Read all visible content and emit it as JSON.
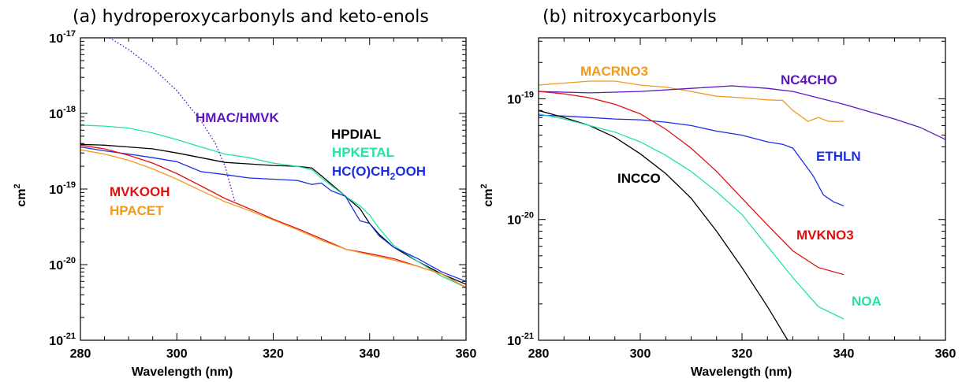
{
  "chart_data": [
    {
      "type": "line",
      "title": "(a) hydroperoxycarbonyls and keto-enols",
      "xlabel": "Wavelength (nm)",
      "ylabel": "cm2",
      "ylabel_base": "cm",
      "ylabel_sup": "2",
      "yscale": "log",
      "xlim": [
        280,
        360
      ],
      "ylim": [
        1e-21,
        1e-17
      ],
      "xticks": [
        280,
        300,
        320,
        340,
        360
      ],
      "xtick_labels": [
        "280",
        "300",
        "320",
        "340",
        "360"
      ],
      "yticks": [
        1e-21,
        1e-20,
        1e-19,
        1e-18,
        1e-17
      ],
      "ytick_bases": [
        "10",
        "10",
        "10",
        "10",
        "10"
      ],
      "ytick_exps": [
        "-21",
        "-20",
        "-19",
        "-18",
        "-17"
      ],
      "grid": false,
      "legend": "none",
      "series": [
        {
          "name": "HPDIAL",
          "color": "#000000",
          "x": [
            280,
            285,
            290,
            295,
            300,
            305,
            310,
            315,
            320,
            325,
            328,
            330,
            335,
            338,
            340,
            342,
            345,
            350,
            355,
            360
          ],
          "y": [
            3.9e-19,
            3.8e-19,
            3.6e-19,
            3.4e-19,
            3e-19,
            2.6e-19,
            2.25e-19,
            2.15e-19,
            2.05e-19,
            2e-19,
            1.9e-19,
            1.5e-19,
            8e-20,
            5.5e-20,
            3.5e-20,
            2.5e-20,
            1.7e-20,
            1.1e-20,
            7.5e-21,
            5.5e-21
          ]
        },
        {
          "name": "HPKETAL",
          "color": "#22e4a0",
          "x": [
            280,
            285,
            290,
            295,
            300,
            305,
            310,
            315,
            320,
            325,
            328,
            330,
            335,
            338,
            340,
            342,
            345,
            350,
            355,
            360
          ],
          "y": [
            7e-19,
            6.8e-19,
            6.4e-19,
            5.5e-19,
            4.5e-19,
            3.6e-19,
            2.9e-19,
            2.6e-19,
            2.2e-19,
            2e-19,
            1.8e-19,
            1.4e-19,
            8e-20,
            6e-20,
            4.5e-20,
            3e-20,
            1.8e-20,
            1.1e-20,
            7e-21,
            5e-21
          ]
        },
        {
          "name": "HC(O)CH2OOH",
          "color": "#1a2de6",
          "x": [
            280,
            285,
            290,
            295,
            300,
            305,
            310,
            315,
            320,
            325,
            328,
            330,
            332,
            335,
            338,
            340,
            342,
            345,
            350,
            355,
            360
          ],
          "y": [
            3.6e-19,
            3.2e-19,
            2.9e-19,
            2.6e-19,
            2.3e-19,
            1.7e-19,
            1.55e-19,
            1.4e-19,
            1.35e-19,
            1.3e-19,
            1.15e-19,
            1.2e-19,
            9.5e-20,
            8e-20,
            3.8e-20,
            3.5e-20,
            2.4e-20,
            1.7e-20,
            1.2e-20,
            8e-21,
            6e-21
          ]
        },
        {
          "name": "MVKOOH",
          "color": "#e01010",
          "x": [
            280,
            285,
            290,
            295,
            300,
            305,
            310,
            315,
            320,
            325,
            330,
            335,
            340,
            345,
            350,
            355,
            360
          ],
          "y": [
            3.8e-19,
            3.4e-19,
            2.8e-19,
            2.2e-19,
            1.6e-19,
            1.1e-19,
            7.5e-20,
            5.5e-20,
            4e-20,
            3e-20,
            2.2e-20,
            1.6e-20,
            1.4e-20,
            1.2e-20,
            9.5e-21,
            7.5e-21,
            5e-21
          ]
        },
        {
          "name": "HPACET",
          "color": "#f39a1c",
          "x": [
            280,
            285,
            290,
            295,
            300,
            305,
            310,
            315,
            320,
            325,
            330,
            335,
            340,
            345,
            350,
            355,
            360
          ],
          "y": [
            3.3e-19,
            2.9e-19,
            2.4e-19,
            1.85e-19,
            1.35e-19,
            9.5e-20,
            6.8e-20,
            5.2e-20,
            3.9e-20,
            2.9e-20,
            2.1e-20,
            1.6e-20,
            1.35e-20,
            1.15e-20,
            9.5e-21,
            7.5e-21,
            5e-21
          ]
        },
        {
          "name": "HMAC/HMVK",
          "color": "#5b16c4",
          "dash": "dotted",
          "x": [
            286,
            290,
            295,
            300,
            305,
            308,
            310,
            312
          ],
          "y": [
            1e-17,
            7e-18,
            4e-18,
            2e-18,
            8e-19,
            4e-19,
            2e-19,
            7e-20
          ]
        }
      ]
    },
    {
      "type": "line",
      "title": "(b) nitroxycarbonyls",
      "xlabel": "Wavelength (nm)",
      "ylabel": "cm2",
      "ylabel_base": "cm",
      "ylabel_sup": "2",
      "yscale": "log",
      "xlim": [
        280,
        360
      ],
      "ylim": [
        1e-21,
        3.2e-19
      ],
      "xticks": [
        280,
        300,
        320,
        340,
        360
      ],
      "xtick_labels": [
        "280",
        "300",
        "320",
        "340",
        "360"
      ],
      "yticks": [
        1e-21,
        1e-20,
        1e-19
      ],
      "ytick_bases": [
        "10",
        "10",
        "10"
      ],
      "ytick_exps": [
        "-21",
        "-20",
        "-19"
      ],
      "grid": false,
      "legend": "none",
      "series": [
        {
          "name": "MACRNO3",
          "color": "#f39a1c",
          "x": [
            280,
            285,
            290,
            295,
            300,
            305,
            310,
            315,
            320,
            325,
            328,
            330,
            333,
            335,
            337,
            340
          ],
          "y": [
            1.3e-19,
            1.35e-19,
            1.4e-19,
            1.4e-19,
            1.3e-19,
            1.25e-19,
            1.15e-19,
            1.05e-19,
            1.02e-19,
            9.8e-20,
            9.7e-20,
            8e-20,
            6.5e-20,
            7e-20,
            6.5e-20,
            6.5e-20
          ]
        },
        {
          "name": "NC4CHO",
          "color": "#5b16c4",
          "x": [
            280,
            290,
            300,
            310,
            318,
            325,
            330,
            340,
            350,
            355,
            360
          ],
          "y": [
            1.15e-19,
            1.12e-19,
            1.15e-19,
            1.22e-19,
            1.28e-19,
            1.22e-19,
            1.15e-19,
            9e-20,
            6.8e-20,
            5.8e-20,
            4.6e-20
          ]
        },
        {
          "name": "ETHLN",
          "color": "#1a2de6",
          "x": [
            280,
            285,
            290,
            295,
            300,
            305,
            310,
            315,
            320,
            325,
            328,
            330,
            332,
            334,
            336,
            338,
            340
          ],
          "y": [
            7.3e-20,
            7.2e-20,
            7e-20,
            6.8e-20,
            6.7e-20,
            6.4e-20,
            6e-20,
            5.4e-20,
            5e-20,
            4.4e-20,
            4.2e-20,
            3.9e-20,
            3e-20,
            2.3e-20,
            1.6e-20,
            1.4e-20,
            1.3e-20
          ]
        },
        {
          "name": "INCCO",
          "color": "#000000",
          "x": [
            280,
            285,
            290,
            295,
            300,
            305,
            310,
            315,
            320,
            325,
            329
          ],
          "y": [
            8e-20,
            7e-20,
            6e-20,
            4.8e-20,
            3.5e-20,
            2.4e-20,
            1.5e-20,
            8e-21,
            4e-21,
            1.9e-21,
            1e-21
          ]
        },
        {
          "name": "MVKNO3",
          "color": "#e01010",
          "x": [
            280,
            285,
            290,
            295,
            300,
            305,
            310,
            315,
            320,
            325,
            330,
            335,
            340
          ],
          "y": [
            1.15e-19,
            1.1e-19,
            1.02e-19,
            9e-20,
            7.5e-20,
            5.6e-20,
            3.9e-20,
            2.5e-20,
            1.5e-20,
            9e-21,
            5.5e-21,
            4e-21,
            3.5e-21
          ]
        },
        {
          "name": "NOA",
          "color": "#22e4a0",
          "x": [
            280,
            285,
            290,
            295,
            300,
            305,
            310,
            315,
            320,
            325,
            330,
            335,
            340
          ],
          "y": [
            7.5e-20,
            6.8e-20,
            6e-20,
            5.3e-20,
            4.4e-20,
            3.4e-20,
            2.5e-20,
            1.7e-20,
            1.1e-20,
            6e-21,
            3.3e-21,
            1.9e-21,
            1.5e-21
          ]
        }
      ]
    }
  ]
}
